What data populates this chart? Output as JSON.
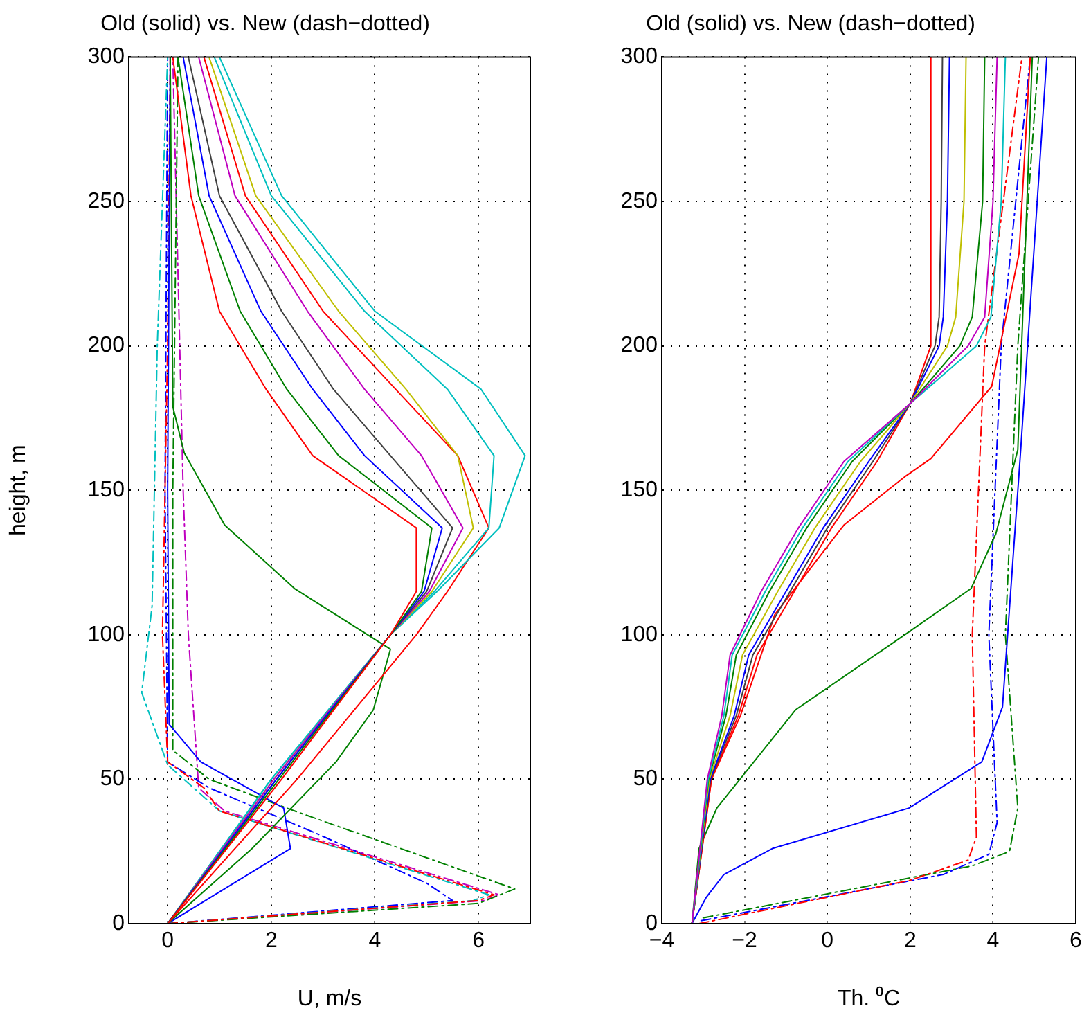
{
  "chart_data": [
    {
      "type": "line",
      "title": "Old (solid) vs. New (dash−dotted)",
      "xlabel": "U, m/s",
      "ylabel": "height, m",
      "xlim": [
        -0.75,
        7
      ],
      "xticks": [
        0,
        2,
        4,
        6
      ],
      "ylim": [
        0,
        300
      ],
      "yticks": [
        0,
        50,
        100,
        150,
        200,
        250,
        300
      ],
      "grid": true,
      "marker": "none",
      "legend": false,
      "series": [
        {
          "color": "#ff0000",
          "line_style": "solid",
          "x": [
            0,
            2.2,
            4.3,
            4.8,
            4.8,
            2.8,
            1.9,
            1.0,
            0.45,
            0.1
          ],
          "values": [
            0,
            50,
            100,
            115,
            137,
            162,
            185,
            212,
            252,
            300
          ]
        },
        {
          "color": "#008000",
          "line_style": "solid",
          "x": [
            0,
            2.15,
            4.3,
            4.9,
            5.1,
            3.3,
            2.3,
            1.4,
            0.6,
            0.2
          ],
          "values": [
            0,
            50,
            100,
            115,
            137,
            162,
            185,
            212,
            252,
            300
          ]
        },
        {
          "color": "#0000ff",
          "line_style": "solid",
          "x": [
            0,
            2.1,
            4.3,
            4.95,
            5.3,
            3.8,
            2.8,
            1.8,
            0.8,
            0.3
          ],
          "values": [
            0,
            50,
            100,
            115,
            137,
            162,
            185,
            212,
            252,
            300
          ]
        },
        {
          "color": "#404040",
          "line_style": "solid",
          "x": [
            0,
            2.1,
            4.3,
            5.0,
            5.5,
            4.3,
            3.2,
            2.2,
            1.0,
            0.4
          ],
          "values": [
            0,
            50,
            100,
            115,
            137,
            162,
            185,
            212,
            252,
            300
          ]
        },
        {
          "color": "#bf00bf",
          "line_style": "solid",
          "x": [
            0,
            2.05,
            4.3,
            5.05,
            5.7,
            4.9,
            3.8,
            2.7,
            1.3,
            0.6
          ],
          "values": [
            0,
            50,
            100,
            115,
            137,
            162,
            185,
            212,
            252,
            300
          ]
        },
        {
          "color": "#bfbf00",
          "line_style": "solid",
          "x": [
            0,
            2.05,
            4.3,
            5.1,
            5.9,
            5.6,
            4.6,
            3.3,
            1.7,
            0.8
          ],
          "values": [
            0,
            50,
            100,
            115,
            137,
            162,
            185,
            212,
            252,
            300
          ]
        },
        {
          "color": "#00bfbf",
          "line_style": "solid",
          "x": [
            0,
            2.0,
            4.3,
            5.15,
            6.2,
            6.3,
            5.4,
            3.8,
            2.0,
            0.9
          ],
          "values": [
            0,
            50,
            100,
            115,
            137,
            162,
            185,
            212,
            252,
            300
          ]
        },
        {
          "color": "#00bfbf",
          "line_style": "solid",
          "x": [
            0,
            2.0,
            4.3,
            5.2,
            6.4,
            6.9,
            6.05,
            4.0,
            2.2,
            1.0
          ],
          "values": [
            0,
            50,
            100,
            115,
            137,
            162,
            185,
            212,
            252,
            300
          ]
        },
        {
          "color": "#ff0000",
          "line_style": "solid",
          "x": [
            0,
            2.5,
            4.8,
            5.4,
            6.2,
            5.6,
            4.4,
            3.0,
            1.5,
            0.7
          ],
          "values": [
            0,
            50,
            100,
            115,
            137,
            162,
            185,
            212,
            252,
            300
          ]
        },
        {
          "color": "#008000",
          "line_style": "solid",
          "x": [
            0,
            1.63,
            3.25,
            3.97,
            4.3,
            2.45,
            1.1,
            0.32,
            0.1,
            0.05
          ],
          "values": [
            0,
            26,
            56,
            74,
            95,
            116,
            138,
            163,
            179,
            300
          ]
        },
        {
          "color": "#0000ff",
          "line_style": "solid",
          "x": [
            0,
            2.37,
            2.24,
            0.64,
            0.03,
            0,
            0.05
          ],
          "values": [
            0,
            26,
            40,
            56,
            69,
            150,
            300
          ]
        },
        {
          "color": "#ff0000",
          "line_style": "dashed",
          "x": [
            0,
            6.0,
            6.3,
            1.0,
            0.7,
            0,
            -0.1,
            0,
            0.05
          ],
          "values": [
            0,
            8,
            10,
            39,
            47,
            56,
            100,
            200,
            300
          ]
        },
        {
          "color": "#008000",
          "line_style": "dashed",
          "x": [
            0,
            6.0,
            6.7,
            2.45,
            0.8,
            0.1,
            0.1,
            0.2
          ],
          "values": [
            0,
            7,
            12,
            39,
            50,
            60,
            150,
            300
          ]
        },
        {
          "color": "#00bfbf",
          "line_style": "dashed",
          "x": [
            0,
            5.9,
            6.2,
            1.0,
            0,
            -0.5,
            -0.3,
            -0.2,
            0
          ],
          "values": [
            0,
            8,
            10,
            39,
            55,
            80,
            110,
            200,
            300
          ]
        },
        {
          "color": "#0000ff",
          "line_style": "dashed",
          "x": [
            0,
            5.5,
            5.0,
            2.9,
            0.8,
            0,
            -0.05,
            0
          ],
          "values": [
            0,
            8,
            14,
            31,
            47,
            56,
            150,
            300
          ]
        },
        {
          "color": "#bf00bf",
          "line_style": "dashed",
          "x": [
            0,
            6.1,
            6.4,
            1.1,
            0.6,
            0.4,
            0.3,
            0.1
          ],
          "values": [
            0,
            8,
            10,
            39,
            47,
            100,
            150,
            300
          ]
        }
      ]
    },
    {
      "type": "line",
      "title": "Old (solid) vs. New (dash−dotted)",
      "xlabel": "Th. ⁰C",
      "xlim": [
        -4,
        6
      ],
      "xticks": [
        -4,
        -2,
        0,
        2,
        4,
        6
      ],
      "ylim": [
        0,
        300
      ],
      "yticks": [
        0,
        50,
        100,
        150,
        200,
        250,
        300
      ],
      "grid": true,
      "marker": "none",
      "legend": false,
      "series": [
        {
          "color": "#bf00bf",
          "line_style": "solid",
          "x": [
            -3.27,
            -2.9,
            -2.55,
            -2.35,
            -1.6,
            -0.7,
            0.4,
            2.0,
            3.4,
            3.8,
            4.0,
            4.1
          ],
          "values": [
            0,
            50,
            72,
            93,
            115,
            137,
            160,
            180,
            200,
            210,
            250,
            300
          ]
        },
        {
          "color": "#00bfbf",
          "line_style": "solid",
          "x": [
            -3.27,
            -2.88,
            -2.5,
            -2.3,
            -1.5,
            -0.6,
            0.5,
            2.0,
            3.6,
            3.95,
            4.2,
            4.3
          ],
          "values": [
            0,
            50,
            72,
            93,
            115,
            137,
            160,
            180,
            200,
            210,
            250,
            300
          ]
        },
        {
          "color": "#008000",
          "line_style": "solid",
          "x": [
            -3.27,
            -2.87,
            -2.45,
            -2.2,
            -1.4,
            -0.5,
            0.6,
            2.0,
            3.2,
            3.5,
            3.75,
            3.8
          ],
          "values": [
            0,
            50,
            72,
            93,
            115,
            137,
            160,
            180,
            200,
            210,
            250,
            300
          ]
        },
        {
          "color": "#bfbf00",
          "line_style": "solid",
          "x": [
            -3.27,
            -2.85,
            -2.35,
            -2.05,
            -1.2,
            -0.3,
            0.8,
            2.0,
            2.9,
            3.1,
            3.3,
            3.35
          ],
          "values": [
            0,
            50,
            72,
            93,
            115,
            137,
            160,
            180,
            200,
            210,
            250,
            300
          ]
        },
        {
          "color": "#0000ff",
          "line_style": "solid",
          "x": [
            -3.27,
            -2.83,
            -2.25,
            -1.9,
            -1.0,
            -0.1,
            1.0,
            2.0,
            2.7,
            2.8,
            2.9,
            2.95
          ],
          "values": [
            0,
            50,
            72,
            93,
            115,
            137,
            160,
            180,
            200,
            210,
            250,
            300
          ]
        },
        {
          "color": "#404040",
          "line_style": "solid",
          "x": [
            -3.27,
            -2.82,
            -2.2,
            -1.8,
            -0.9,
            0.0,
            1.1,
            2.0,
            2.6,
            2.7,
            2.75,
            2.78
          ],
          "values": [
            0,
            50,
            72,
            93,
            115,
            137,
            160,
            180,
            200,
            210,
            250,
            300
          ]
        },
        {
          "color": "#ff0000",
          "line_style": "solid",
          "x": [
            -3.27,
            -2.8,
            -2.15,
            -1.7,
            -0.8,
            0.1,
            1.2,
            2.0,
            2.5,
            2.5,
            2.5,
            2.5
          ],
          "values": [
            0,
            50,
            72,
            93,
            115,
            137,
            160,
            180,
            200,
            210,
            250,
            300
          ]
        },
        {
          "color": "#ff0000",
          "line_style": "solid",
          "x": [
            -3.27,
            -2.8,
            -2.1,
            -1.27,
            0.4,
            1.9,
            2.5,
            3.97,
            4.63,
            4.9
          ],
          "values": [
            0,
            50,
            72,
            107,
            138,
            155,
            161,
            186,
            232,
            300
          ]
        },
        {
          "color": "#008000",
          "line_style": "solid",
          "x": [
            -3.27,
            -3.1,
            -2.67,
            -0.77,
            1.97,
            3.47,
            4.07,
            4.6,
            4.95
          ],
          "values": [
            0,
            26,
            40,
            74,
            101,
            116,
            135,
            164,
            300
          ]
        },
        {
          "color": "#0000ff",
          "line_style": "solid",
          "x": [
            -3.27,
            -2.93,
            -2.5,
            -1.33,
            1.97,
            3.73,
            4.23,
            4.67,
            5.3
          ],
          "values": [
            0,
            9,
            17,
            26,
            40,
            56,
            75,
            164,
            300
          ]
        },
        {
          "color": "#ff0000",
          "line_style": "dashed",
          "x": [
            -3.1,
            2.0,
            3.4,
            3.6,
            3.5,
            3.8,
            4.7
          ],
          "values": [
            0,
            15,
            22,
            30,
            100,
            200,
            300
          ]
        },
        {
          "color": "#008000",
          "line_style": "dashed",
          "x": [
            -3.0,
            3.5,
            4.4,
            4.6,
            4.3,
            4.6,
            5.1
          ],
          "values": [
            2,
            20,
            25,
            40,
            100,
            200,
            300
          ]
        },
        {
          "color": "#0000ff",
          "line_style": "dashed",
          "x": [
            -3.05,
            2.8,
            3.9,
            4.1,
            3.9,
            4.2,
            4.9
          ],
          "values": [
            1,
            17,
            24,
            35,
            100,
            200,
            300
          ]
        }
      ]
    }
  ]
}
